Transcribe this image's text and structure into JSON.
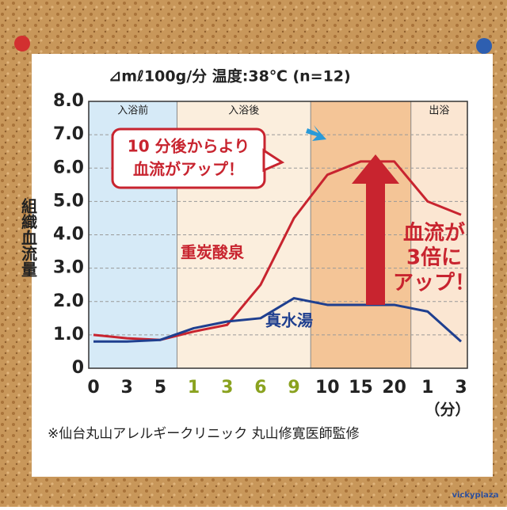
{
  "chart_data": {
    "type": "line",
    "title": "⊿mℓ100g/分 温度:38℃ (n=12)",
    "y_label": "組織血流量",
    "x_unit": "（分）",
    "phase_labels": [
      "入浴前",
      "入浴後",
      "出浴"
    ],
    "categories": [
      "0",
      "3",
      "5",
      "1",
      "3",
      "6",
      "9",
      "10",
      "15",
      "20",
      "1",
      "3"
    ],
    "series": [
      {
        "name": "重炭酸泉",
        "color": "#c8242f",
        "values": [
          1.0,
          0.9,
          0.85,
          1.1,
          1.3,
          2.5,
          4.5,
          5.8,
          6.2,
          6.2,
          5.0,
          4.6
        ]
      },
      {
        "name": "真水湯",
        "color": "#1f3f8f",
        "values": [
          0.8,
          0.8,
          0.85,
          1.2,
          1.4,
          1.5,
          2.1,
          1.9,
          1.9,
          1.9,
          1.7,
          0.8
        ]
      }
    ],
    "ylim": [
      0,
      8
    ],
    "yticks": [
      0,
      {
        "value": 1,
        "label": "1.0"
      },
      {
        "value": 2,
        "label": "2.0"
      },
      {
        "value": 3,
        "label": "3.0"
      },
      {
        "value": 4,
        "label": "4.0"
      },
      {
        "value": 5,
        "label": "5.0"
      },
      {
        "value": 6,
        "label": "6.0"
      },
      {
        "value": 7,
        "label": "7.0"
      },
      {
        "value": 8,
        "label": "8.0"
      }
    ],
    "grid": true,
    "annotations": [
      "10 分後からより",
      "血流がアップ！",
      "血流が",
      "3倍に",
      "アップ！"
    ],
    "source": "※仙台丸山アレルギークリニック 丸山修寛医師監修",
    "logo": "vickyplaza"
  }
}
